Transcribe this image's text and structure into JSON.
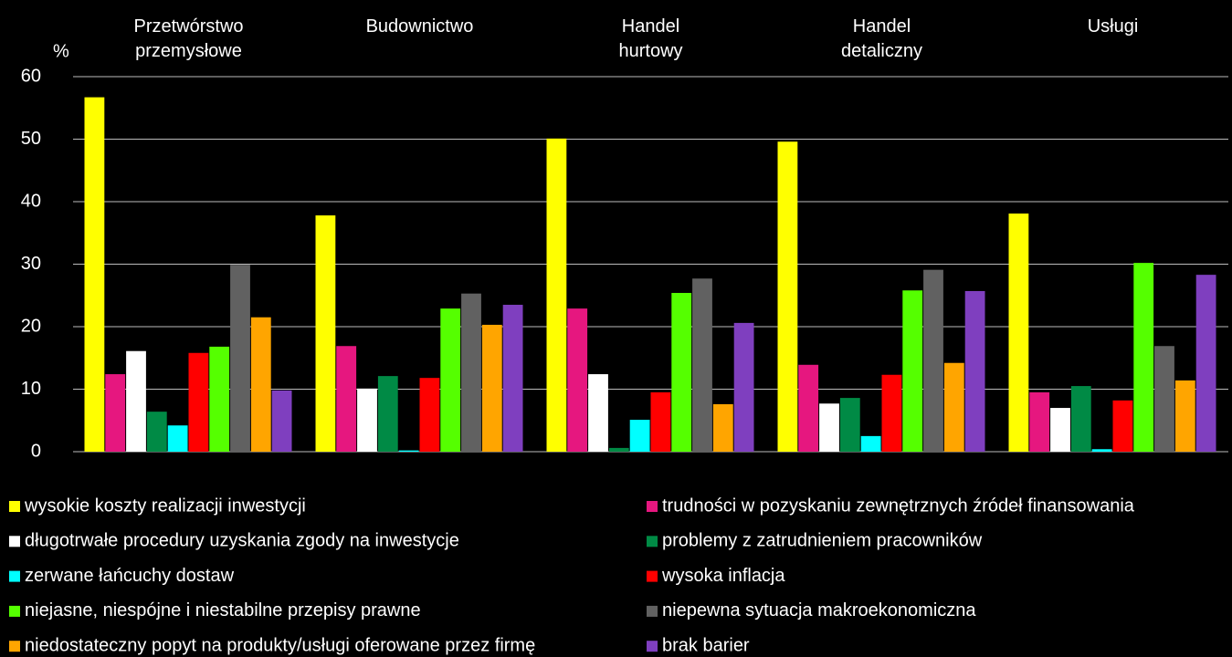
{
  "chart_data": {
    "type": "bar",
    "y_label": "%",
    "categories": [
      "Przetwórstwo\nprzemysłowe",
      "Budownictwo",
      "Handel\nhurtowy",
      "Handel\ndetaliczny",
      "Usługi"
    ],
    "ylim": [
      0,
      60
    ],
    "yticks": [
      0,
      10,
      20,
      30,
      40,
      50,
      60
    ],
    "grid": true,
    "series": [
      {
        "name": "wysokie koszty realizacji inwestycji",
        "color": "#ffff00",
        "values": [
          56.7,
          37.8,
          50.1,
          49.6,
          38.1
        ]
      },
      {
        "name": "trudności w pozyskaniu zewnętrznych źródeł finansowania",
        "color": "#e6177f",
        "values": [
          12.4,
          16.9,
          22.9,
          13.9,
          9.5
        ]
      },
      {
        "name": "długotrwałe procedury uzyskania zgody na inwestycje",
        "color": "#ffffff",
        "values": [
          16.1,
          10.1,
          12.4,
          7.7,
          7.0
        ]
      },
      {
        "name": "problemy z zatrudnieniem pracowników",
        "color": "#008a45",
        "values": [
          6.4,
          12.1,
          0.6,
          8.6,
          10.5
        ]
      },
      {
        "name": "zerwane łańcuchy dostaw",
        "color": "#00ffff",
        "values": [
          4.2,
          0.2,
          5.1,
          2.5,
          0.4
        ]
      },
      {
        "name": "wysoka inflacja",
        "color": "#ff0000",
        "values": [
          15.8,
          11.8,
          9.5,
          12.3,
          8.2
        ]
      },
      {
        "name": "niejasne, niespójne i niestabilne przepisy prawne",
        "color": "#55ff00",
        "values": [
          16.8,
          22.9,
          25.4,
          25.8,
          30.2
        ]
      },
      {
        "name": "niepewna sytuacja makroekonomiczna",
        "color": "#616161",
        "values": [
          29.9,
          25.3,
          27.7,
          29.1,
          16.9
        ]
      },
      {
        "name": "niedostateczny popyt na produkty/usługi oferowane przez firmę",
        "color": "#ffa500",
        "values": [
          21.5,
          20.3,
          7.6,
          14.2,
          11.4
        ]
      },
      {
        "name": "brak barier",
        "color": "#7f3fbf",
        "values": [
          9.8,
          23.5,
          20.6,
          25.7,
          28.3
        ]
      }
    ]
  }
}
